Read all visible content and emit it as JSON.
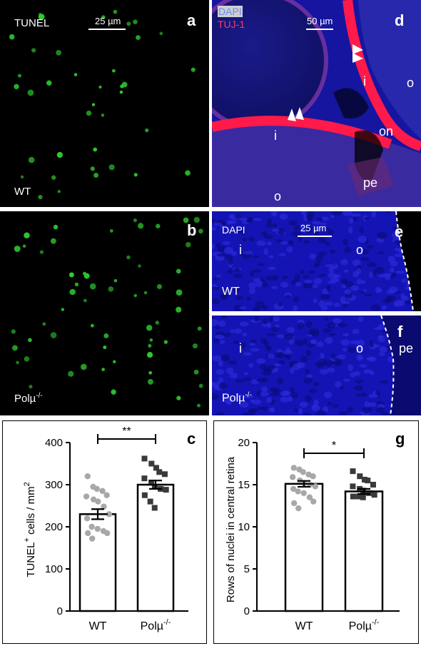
{
  "figure": {
    "panel_a": {
      "letter": "a",
      "stain": "TUNEL",
      "scale": "25 µm",
      "genotype": "WT"
    },
    "panel_b": {
      "letter": "b",
      "genotype_base": "Polµ",
      "genotype_sup": "-/-"
    },
    "panel_d": {
      "letter": "d",
      "legend_dapi": "DAPI",
      "legend_tuj": "TUJ-1",
      "scale": "50 µm",
      "labels": {
        "i1": "i",
        "o1": "o",
        "i2": "i",
        "o2": "o",
        "on": "on",
        "pe": "pe"
      }
    },
    "panel_e": {
      "letter": "e",
      "stain": "DAPI",
      "scale": "25 µm",
      "i": "i",
      "o": "o",
      "genotype": "WT"
    },
    "panel_f": {
      "letter": "f",
      "i": "i",
      "o": "o",
      "pe": "pe",
      "genotype_base": "Polµ",
      "genotype_sup": "-/-"
    }
  },
  "chart_data": [
    {
      "panel": "c",
      "type": "bar",
      "ylabel_main": "TUNEL",
      "ylabel_sup": "+",
      "ylabel_tail": " cells / mm",
      "ylabel_tail_sup": "2",
      "ylim": [
        0,
        400
      ],
      "yticks": [
        0,
        100,
        200,
        300,
        400
      ],
      "categories": [
        "WT",
        "Polµ"
      ],
      "category_sup": [
        "",
        "-/-"
      ],
      "values": [
        230,
        300
      ],
      "errors": [
        12,
        10
      ],
      "significance": "**",
      "points": [
        [
          320,
          295,
          290,
          285,
          275,
          272,
          265,
          260,
          248,
          230,
          220,
          200,
          195,
          190,
          185,
          185,
          172
        ],
        [
          362,
          350,
          340,
          330,
          325,
          315,
          305,
          295,
          290,
          288,
          275,
          260,
          245
        ]
      ],
      "colors": {
        "WT": "#a8a8a8",
        "KO": "#3a3a3a"
      }
    },
    {
      "panel": "g",
      "type": "bar",
      "ylabel": "Rows of nuclei in central retina",
      "ylim": [
        0,
        20
      ],
      "yticks": [
        0,
        5,
        10,
        15,
        20
      ],
      "categories": [
        "WT",
        "Polµ"
      ],
      "category_sup": [
        "",
        "-/-"
      ],
      "values": [
        15.1,
        14.2
      ],
      "errors": [
        0.35,
        0.3
      ],
      "significance": "*",
      "points": [
        [
          17,
          16.8,
          16.5,
          16.2,
          16,
          15.9,
          15.5,
          15.2,
          15,
          14.8,
          14.5,
          14.2,
          14,
          13.5,
          13,
          12.8,
          12.2
        ],
        [
          16.6,
          16,
          15.6,
          15.5,
          15,
          14.8,
          14.5,
          14.3,
          14,
          13.8,
          13.6,
          13.6,
          13.5
        ]
      ],
      "colors": {
        "WT": "#a8a8a8",
        "KO": "#3a3a3a"
      }
    }
  ]
}
